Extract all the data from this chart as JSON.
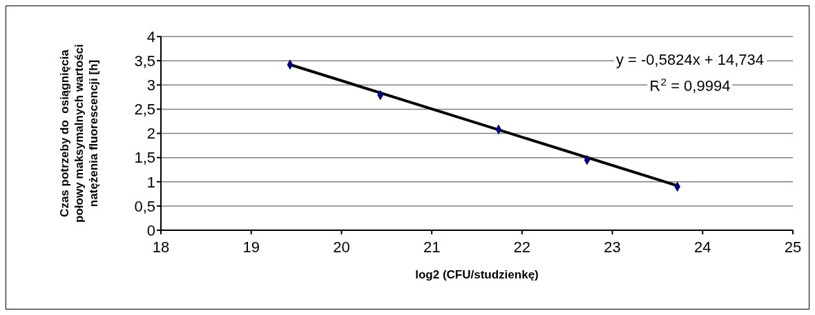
{
  "chart_data": {
    "type": "scatter",
    "ylabel": "Czas potrzeby do  osiągnięcia połowy maksymalnych wartości natężenia fluorescencji [h]",
    "xlabel": "log2 (CFU/studzienkę)",
    "x": [
      19.43,
      20.43,
      21.74,
      22.72,
      23.72
    ],
    "series": [
      {
        "color": "#000080",
        "marker": "diamond",
        "values": [
          3.42,
          2.79,
          2.08,
          1.45,
          0.9
        ]
      },
      {
        "type": "line",
        "color": "#000000",
        "marker": "none",
        "x": [
          19.43,
          23.72
        ],
        "values": [
          3.42,
          0.92
        ]
      }
    ],
    "annotations": [
      "y = -0,5824x + 14,734",
      "R$^{2}$ = 0,9994"
    ],
    "xlim": [
      18,
      25
    ],
    "xticks": [
      18,
      19,
      20,
      21,
      22,
      23,
      24,
      25
    ],
    "ylim": [
      0,
      4
    ],
    "yticks": [
      0,
      {
        "value": 0.5,
        "label": "0,5"
      },
      1,
      {
        "value": 1.5,
        "label": "1,5"
      },
      2,
      {
        "value": 2.5,
        "label": "2,5"
      },
      3,
      {
        "value": 3.5,
        "label": "3,5"
      },
      4
    ],
    "grid": "y",
    "legend": false
  }
}
